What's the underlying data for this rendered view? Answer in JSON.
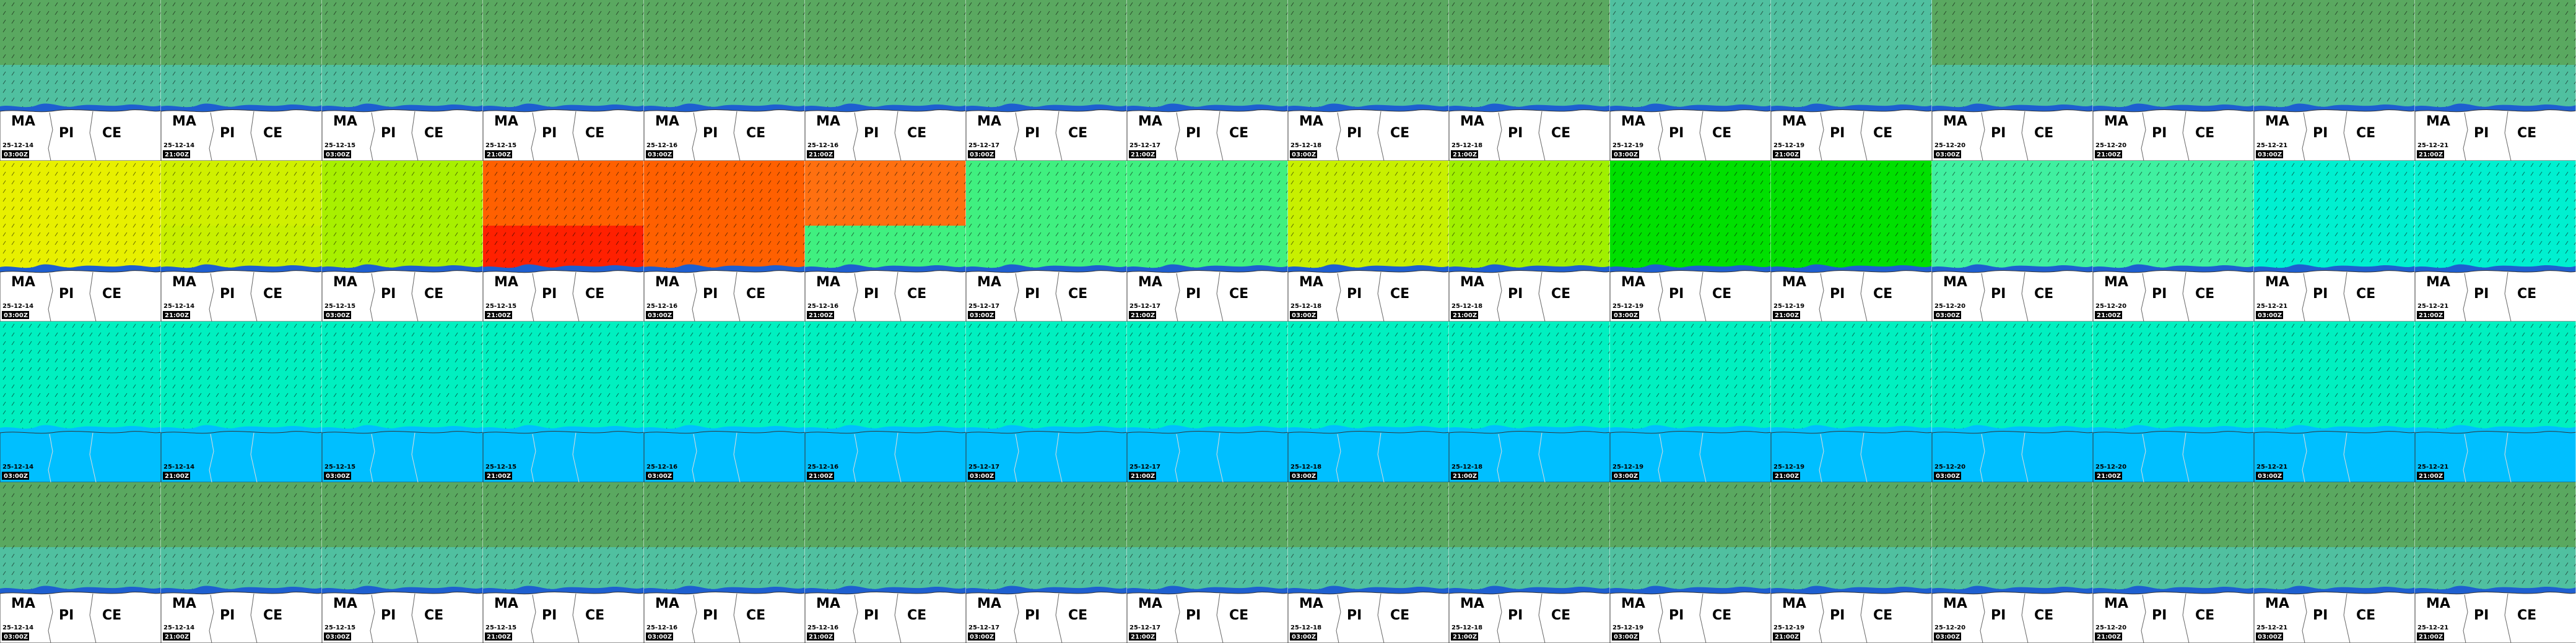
{
  "regions": [
    "MA",
    "PI",
    "CE"
  ],
  "columns": [
    {
      "date": "25-12-14",
      "time": "03:00Z"
    },
    {
      "date": "25-12-14",
      "time": "21:00Z"
    },
    {
      "date": "25-12-15",
      "time": "03:00Z"
    },
    {
      "date": "25-12-15",
      "time": "21:00Z"
    },
    {
      "date": "25-12-16",
      "time": "03:00Z"
    },
    {
      "date": "25-12-16",
      "time": "21:00Z"
    },
    {
      "date": "25-12-17",
      "time": "03:00Z"
    },
    {
      "date": "25-12-17",
      "time": "21:00Z"
    },
    {
      "date": "25-12-18",
      "time": "03:00Z"
    },
    {
      "date": "25-12-18",
      "time": "21:00Z"
    },
    {
      "date": "25-12-19",
      "time": "03:00Z"
    },
    {
      "date": "25-12-19",
      "time": "21:00Z"
    },
    {
      "date": "25-12-20",
      "time": "03:00Z"
    },
    {
      "date": "25-12-20",
      "time": "21:00Z"
    },
    {
      "date": "25-12-21",
      "time": "03:00Z"
    },
    {
      "date": "25-12-21",
      "time": "21:00Z"
    }
  ],
  "rows": [
    {
      "sea": [
        "#5aa860",
        "#5aa860",
        "#5aa860",
        "#5aa860",
        "#5aa860",
        "#5aa860",
        "#5aa860",
        "#5aa860",
        "#5aa860",
        "#5aa860",
        "#50c0a0",
        "#50c0a0",
        "#5aa860",
        "#5aa860",
        "#5aa860",
        "#5aa860"
      ],
      "near": [
        "#50c0a0",
        "#50c0a0",
        "#50c0a0",
        "#50c0a0",
        "#50c0a0",
        "#50c0a0",
        "#50c0a0",
        "#50c0a0",
        "#50c0a0",
        "#50c0a0",
        "#50c0a0",
        "#50c0a0",
        "#50c0a0",
        "#50c0a0",
        "#50c0a0",
        "#50c0a0"
      ],
      "land": "#ffffff",
      "labels": true
    },
    {
      "sea": [
        "#e8f000",
        "#d0f000",
        "#a8f000",
        "#ff6000",
        "#ff6000",
        "#ff7010",
        "#40f080",
        "#40f080",
        "#c8f000",
        "#a0f000",
        "#00e000",
        "#00e000",
        "#40f0a0",
        "#40f0a0",
        "#00f0d0",
        "#00f0d0"
      ],
      "near": [
        "#e8f000",
        "#c8f000",
        "#a8f000",
        "#ff2000",
        "#ff6000",
        "#40f080",
        "#40f080",
        "#40f080",
        "#c8f000",
        "#a0f000",
        "#00e000",
        "#00e000",
        "#40f0a0",
        "#40f0a0",
        "#00f0d0",
        "#00f0d0"
      ],
      "land": "#ffffff",
      "labels": true
    },
    {
      "sea": [
        "#00f0c0",
        "#00f0c0",
        "#00f0c0",
        "#00f0c0",
        "#00f0c0",
        "#00f0c0",
        "#00f0c0",
        "#00f0c0",
        "#00f0c0",
        "#00f0c0",
        "#00f0c0",
        "#00f0c0",
        "#00f0c0",
        "#00f0c0",
        "#00f0c0",
        "#00f0c0"
      ],
      "near": [
        "#00f0c0",
        "#00f0c0",
        "#00f0c0",
        "#00f0c0",
        "#00f0c0",
        "#00f0c0",
        "#00f0c0",
        "#00f0c0",
        "#00f0c0",
        "#00f0c0",
        "#00f0c0",
        "#00f0c0",
        "#00f0c0",
        "#00f0c0",
        "#00f0c0",
        "#00f0c0"
      ],
      "land": "#00bfff",
      "labels": false
    },
    {
      "sea": [
        "#5aa860",
        "#5aa860",
        "#5aa860",
        "#5aa860",
        "#5aa860",
        "#5aa860",
        "#5aa860",
        "#5aa860",
        "#5aa860",
        "#5aa860",
        "#5aa860",
        "#5aa860",
        "#5aa860",
        "#5aa860",
        "#5aa860",
        "#5aa860"
      ],
      "near": [
        "#50c0a0",
        "#50c0a0",
        "#50c0a0",
        "#50c0a0",
        "#50c0a0",
        "#50c0a0",
        "#50c0a0",
        "#50c0a0",
        "#50c0a0",
        "#50c0a0",
        "#50c0a0",
        "#50c0a0",
        "#50c0a0",
        "#50c0a0",
        "#50c0a0",
        "#50c0a0"
      ],
      "land": "#ffffff",
      "labels": true
    }
  ]
}
